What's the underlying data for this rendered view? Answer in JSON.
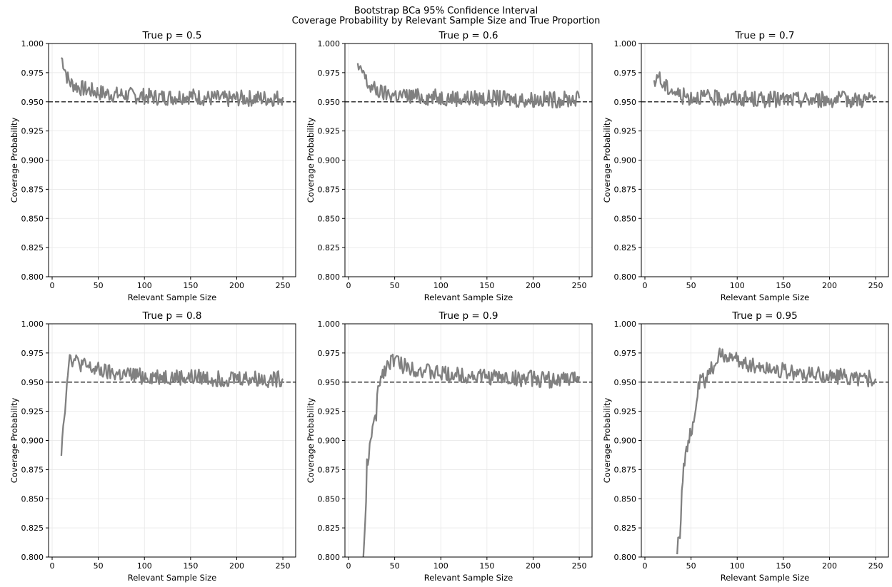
{
  "figure": {
    "title_line1": "Bootstrap BCa 95% Confidence Interval",
    "title_line2": "Coverage Probability by Relevant Sample Size and True Proportion"
  },
  "chart_data": [
    {
      "type": "line",
      "title": "True p = 0.5",
      "xlabel": "Relevant Sample Size",
      "ylabel": "Coverage Probability",
      "xlim": [
        0,
        260
      ],
      "ylim": [
        0.8,
        1.0
      ],
      "xticks": [
        0,
        50,
        100,
        150,
        200,
        250
      ],
      "yticks": [
        0.8,
        0.825,
        0.85,
        0.875,
        0.9,
        0.925,
        0.95,
        0.975,
        1.0
      ],
      "reference_y": 0.95,
      "grid": true,
      "line_color": "#808080",
      "series": [
        {
          "x": [
            10,
            12,
            14,
            16,
            18,
            20,
            25,
            30,
            35,
            40,
            45,
            50,
            60,
            70,
            80,
            90,
            100,
            110,
            120,
            130,
            140,
            150,
            160,
            170,
            180,
            190,
            200,
            210,
            220,
            230,
            240,
            250
          ],
          "y": [
            0.988,
            0.984,
            0.978,
            0.972,
            0.968,
            0.966,
            0.964,
            0.962,
            0.961,
            0.96,
            0.959,
            0.958,
            0.957,
            0.956,
            0.956,
            0.955,
            0.955,
            0.954,
            0.954,
            0.954,
            0.955,
            0.955,
            0.954,
            0.953,
            0.953,
            0.952,
            0.953,
            0.953,
            0.953,
            0.953,
            0.953,
            0.954
          ]
        }
      ]
    },
    {
      "type": "line",
      "title": "True p = 0.6",
      "xlabel": "Relevant Sample Size",
      "ylabel": "Coverage Probability",
      "xlim": [
        0,
        260
      ],
      "ylim": [
        0.8,
        1.0
      ],
      "xticks": [
        0,
        50,
        100,
        150,
        200,
        250
      ],
      "yticks": [
        0.8,
        0.825,
        0.85,
        0.875,
        0.9,
        0.925,
        0.95,
        0.975,
        1.0
      ],
      "reference_y": 0.95,
      "grid": true,
      "line_color": "#808080",
      "series": [
        {
          "x": [
            10,
            12,
            14,
            16,
            18,
            20,
            25,
            30,
            35,
            40,
            50,
            60,
            70,
            80,
            90,
            100,
            120,
            140,
            160,
            180,
            200,
            220,
            240,
            250
          ],
          "y": [
            0.98,
            0.976,
            0.974,
            0.977,
            0.97,
            0.966,
            0.962,
            0.96,
            0.958,
            0.957,
            0.956,
            0.955,
            0.955,
            0.954,
            0.954,
            0.954,
            0.953,
            0.953,
            0.953,
            0.952,
            0.952,
            0.952,
            0.952,
            0.953
          ]
        }
      ]
    },
    {
      "type": "line",
      "title": "True p = 0.7",
      "xlabel": "Relevant Sample Size",
      "ylabel": "Coverage Probability",
      "xlim": [
        0,
        260
      ],
      "ylim": [
        0.8,
        1.0
      ],
      "xticks": [
        0,
        50,
        100,
        150,
        200,
        250
      ],
      "yticks": [
        0.8,
        0.825,
        0.85,
        0.875,
        0.9,
        0.925,
        0.95,
        0.975,
        1.0
      ],
      "reference_y": 0.95,
      "grid": true,
      "line_color": "#808080",
      "series": [
        {
          "x": [
            10,
            12,
            14,
            16,
            18,
            20,
            25,
            30,
            35,
            40,
            50,
            60,
            70,
            80,
            90,
            100,
            120,
            140,
            160,
            180,
            200,
            220,
            240,
            250
          ],
          "y": [
            0.962,
            0.968,
            0.976,
            0.97,
            0.966,
            0.964,
            0.962,
            0.96,
            0.957,
            0.955,
            0.954,
            0.955,
            0.953,
            0.953,
            0.953,
            0.953,
            0.952,
            0.952,
            0.952,
            0.952,
            0.952,
            0.952,
            0.952,
            0.953
          ]
        }
      ]
    },
    {
      "type": "line",
      "title": "True p = 0.8",
      "xlabel": "Relevant Sample Size",
      "ylabel": "Coverage Probability",
      "xlim": [
        0,
        260
      ],
      "ylim": [
        0.8,
        1.0
      ],
      "xticks": [
        0,
        50,
        100,
        150,
        200,
        250
      ],
      "yticks": [
        0.8,
        0.825,
        0.85,
        0.875,
        0.9,
        0.925,
        0.95,
        0.975,
        1.0
      ],
      "reference_y": 0.95,
      "grid": true,
      "line_color": "#808080",
      "series": [
        {
          "x": [
            10,
            11,
            12,
            13,
            14,
            15,
            16,
            17,
            18,
            20,
            22,
            25,
            30,
            35,
            40,
            50,
            60,
            70,
            80,
            90,
            100,
            120,
            140,
            160,
            180,
            200,
            220,
            240,
            250
          ],
          "y": [
            0.891,
            0.905,
            0.918,
            0.922,
            0.925,
            0.938,
            0.952,
            0.962,
            0.968,
            0.972,
            0.97,
            0.968,
            0.966,
            0.964,
            0.962,
            0.96,
            0.958,
            0.957,
            0.956,
            0.956,
            0.955,
            0.955,
            0.954,
            0.954,
            0.953,
            0.954,
            0.953,
            0.952,
            0.953
          ]
        }
      ]
    },
    {
      "type": "line",
      "title": "True p = 0.9",
      "xlabel": "Relevant Sample Size",
      "ylabel": "Coverage Probability",
      "xlim": [
        0,
        260
      ],
      "ylim": [
        0.8,
        1.0
      ],
      "xticks": [
        0,
        50,
        100,
        150,
        200,
        250
      ],
      "yticks": [
        0.8,
        0.825,
        0.85,
        0.875,
        0.9,
        0.925,
        0.95,
        0.975,
        1.0
      ],
      "reference_y": 0.95,
      "grid": true,
      "line_color": "#808080",
      "series": [
        {
          "x": [
            16,
            17,
            18,
            19,
            20,
            22,
            24,
            26,
            28,
            30,
            32,
            34,
            36,
            38,
            40,
            45,
            50,
            55,
            60,
            70,
            80,
            90,
            100,
            120,
            140,
            160,
            180,
            200,
            220,
            240,
            250
          ],
          "y": [
            0.8,
            0.818,
            0.826,
            0.842,
            0.88,
            0.882,
            0.905,
            0.91,
            0.915,
            0.92,
            0.945,
            0.952,
            0.956,
            0.96,
            0.962,
            0.968,
            0.97,
            0.966,
            0.964,
            0.962,
            0.96,
            0.958,
            0.957,
            0.956,
            0.955,
            0.954,
            0.953,
            0.953,
            0.952,
            0.952,
            0.955
          ]
        }
      ]
    },
    {
      "type": "line",
      "title": "True p = 0.95",
      "xlabel": "Relevant Sample Size",
      "ylabel": "Coverage Probability",
      "xlim": [
        0,
        260
      ],
      "ylim": [
        0.8,
        1.0
      ],
      "xticks": [
        0,
        50,
        100,
        150,
        200,
        250
      ],
      "yticks": [
        0.8,
        0.825,
        0.85,
        0.875,
        0.9,
        0.925,
        0.95,
        0.975,
        1.0
      ],
      "reference_y": 0.95,
      "grid": true,
      "line_color": "#808080",
      "series": [
        {
          "x": [
            35,
            36,
            37,
            38,
            40,
            42,
            44,
            46,
            48,
            50,
            52,
            54,
            56,
            58,
            60,
            62,
            65,
            70,
            75,
            80,
            85,
            90,
            95,
            100,
            110,
            120,
            130,
            140,
            150,
            160,
            170,
            180,
            190,
            200,
            210,
            220,
            230,
            240,
            250
          ],
          "y": [
            0.8,
            0.822,
            0.818,
            0.815,
            0.86,
            0.88,
            0.888,
            0.895,
            0.902,
            0.905,
            0.91,
            0.92,
            0.935,
            0.945,
            0.95,
            0.952,
            0.951,
            0.958,
            0.965,
            0.972,
            0.972,
            0.974,
            0.97,
            0.968,
            0.966,
            0.964,
            0.962,
            0.962,
            0.96,
            0.958,
            0.957,
            0.956,
            0.956,
            0.955,
            0.955,
            0.954,
            0.954,
            0.953,
            0.953
          ]
        }
      ]
    }
  ]
}
